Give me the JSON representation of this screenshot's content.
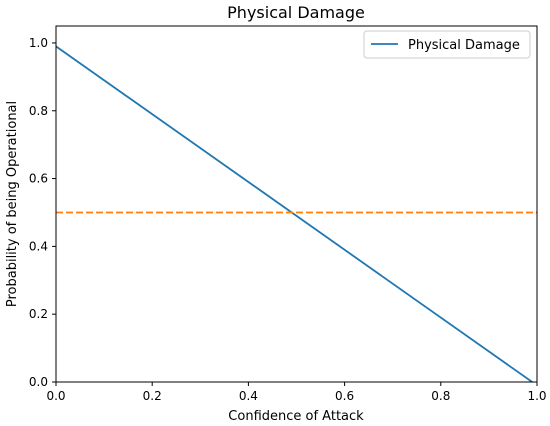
{
  "chart_data": {
    "type": "line",
    "title": "Physical Damage",
    "xlabel": "Confidence of Attack",
    "ylabel": "Probability of being Operational",
    "xlim": [
      0.0,
      1.0
    ],
    "ylim": [
      0.0,
      1.05
    ],
    "xticks": [
      "0.0",
      "0.2",
      "0.4",
      "0.6",
      "0.8",
      "1.0"
    ],
    "yticks": [
      "0.0",
      "0.2",
      "0.4",
      "0.6",
      "0.8",
      "1.0"
    ],
    "legend_position": "top-right",
    "grid": false,
    "series": [
      {
        "name": "Physical Damage",
        "color": "#1f77b4",
        "style": "solid",
        "x": [
          0.0,
          0.99
        ],
        "y": [
          0.99,
          0.0
        ]
      },
      {
        "color": "#ff7f0e",
        "style": "dashed",
        "x": [
          0.0,
          1.0
        ],
        "y": [
          0.5,
          0.5
        ]
      }
    ]
  }
}
